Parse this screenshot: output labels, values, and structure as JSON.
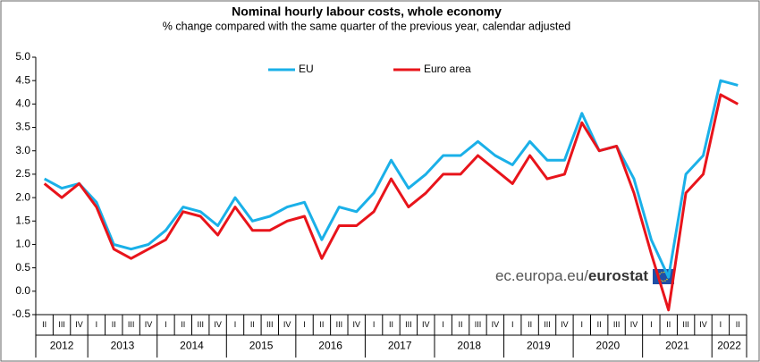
{
  "chart_data": {
    "type": "line",
    "title": "Nominal hourly labour costs, whole economy",
    "subtitle": "% change compared with the same quarter of the previous  year, calendar adjusted",
    "source_prefix": "ec.europa.eu/",
    "source_brand": "eurostat",
    "categories": [
      "II",
      "III",
      "IV",
      "I",
      "II",
      "III",
      "IV",
      "I",
      "II",
      "III",
      "IV",
      "I",
      "II",
      "III",
      "IV",
      "I",
      "II",
      "III",
      "IV",
      "I",
      "II",
      "III",
      "IV",
      "I",
      "II",
      "III",
      "IV",
      "I",
      "II",
      "III",
      "IV",
      "I",
      "II",
      "III",
      "IV",
      "I",
      "II",
      "III",
      "IV",
      "I",
      "II"
    ],
    "years": [
      "2012",
      "2013",
      "2014",
      "2015",
      "2016",
      "2017",
      "2018",
      "2019",
      "2020",
      "2021",
      "2022"
    ],
    "series": [
      {
        "name": "EU",
        "color": "#1ab0e8",
        "values": [
          2.4,
          2.2,
          2.3,
          1.9,
          1.0,
          0.9,
          1.0,
          1.3,
          1.8,
          1.7,
          1.4,
          2.0,
          1.5,
          1.6,
          1.8,
          1.9,
          1.1,
          1.8,
          1.7,
          2.1,
          2.8,
          2.2,
          2.5,
          2.9,
          2.9,
          3.2,
          2.9,
          2.7,
          3.2,
          2.8,
          2.8,
          3.8,
          3.0,
          3.1,
          2.4,
          1.1,
          0.3,
          2.5,
          2.9,
          4.5,
          4.4
        ]
      },
      {
        "name": "Euro area",
        "color": "#e8141b",
        "values": [
          2.3,
          2.0,
          2.3,
          1.8,
          0.9,
          0.7,
          0.9,
          1.1,
          1.7,
          1.6,
          1.2,
          1.8,
          1.3,
          1.3,
          1.5,
          1.6,
          0.7,
          1.4,
          1.4,
          1.7,
          2.4,
          1.8,
          2.1,
          2.5,
          2.5,
          2.9,
          2.6,
          2.3,
          2.9,
          2.4,
          2.5,
          3.6,
          3.0,
          3.1,
          2.1,
          0.8,
          -0.4,
          2.1,
          2.5,
          4.2,
          4.0
        ]
      }
    ],
    "ylim": [
      -0.5,
      5.0
    ],
    "yticks": [
      -0.5,
      {
        "value": 0,
        "label": "0.0"
      },
      0.5,
      {
        "value": 1,
        "label": "1.0"
      },
      1.5,
      {
        "value": 2,
        "label": "2.0"
      },
      2.5,
      {
        "value": 3,
        "label": "3.0"
      },
      3.5,
      {
        "value": 4,
        "label": "4.0"
      },
      4.5,
      {
        "value": 5,
        "label": "5.0"
      }
    ],
    "legend": "top"
  }
}
